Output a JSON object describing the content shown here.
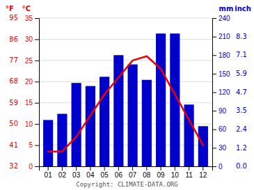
{
  "chart_data": {
    "type": "bar",
    "categories": [
      "01",
      "02",
      "03",
      "04",
      "05",
      "06",
      "07",
      "08",
      "09",
      "10",
      "11",
      "12"
    ],
    "series": [
      {
        "type": "bar",
        "axis": "y2",
        "color": "#0000cc",
        "values": [
          75,
          85,
          135,
          130,
          145,
          180,
          165,
          140,
          215,
          215,
          100,
          65
        ]
      },
      {
        "type": "line",
        "color": "#ee0000",
        "values": [
          3.5,
          3.5,
          7.0,
          12.0,
          17.0,
          21.0,
          25.0,
          26.0,
          23.0,
          17.0,
          11.0,
          5.0
        ]
      }
    ],
    "ylabel": "°C",
    "y2label": "mm",
    "ylim": [
      0,
      35
    ],
    "yticks": [
      0,
      5,
      10,
      15,
      20,
      25,
      30,
      35
    ],
    "y2lim": [
      0,
      240
    ],
    "y2ticks": [
      0,
      30,
      60,
      90,
      120,
      150,
      180,
      210,
      240
    ],
    "grid": true,
    "annotations": [
      {
        "text": "°F",
        "axis": "y"
      },
      {
        "text": "inch",
        "axis": "y2"
      },
      {
        "text": "Copyright: CLIMATE-DATA.ORG"
      },
      {
        "text": "32",
        "y": 0,
        "axis": "y"
      },
      {
        "text": "41",
        "y": 5,
        "axis": "y"
      },
      {
        "text": "50",
        "y": 10,
        "axis": "y"
      },
      {
        "text": "59",
        "y": 15,
        "axis": "y"
      },
      {
        "text": "68",
        "y": 20,
        "axis": "y"
      },
      {
        "text": "77",
        "y": 25,
        "axis": "y"
      },
      {
        "text": "86",
        "y": 30,
        "axis": "y"
      },
      {
        "text": "95",
        "y": 35,
        "axis": "y"
      },
      {
        "text": "0.0",
        "y": 0,
        "axis": "y2"
      },
      {
        "text": "1.2",
        "y": 30,
        "axis": "y2"
      },
      {
        "text": "2.4",
        "y": 60,
        "axis": "y2"
      },
      {
        "text": "3.5",
        "y": 90,
        "axis": "y2"
      },
      {
        "text": "4.7",
        "y": 120,
        "axis": "y2"
      },
      {
        "text": "5.9",
        "y": 150,
        "axis": "y2"
      },
      {
        "text": "7.1",
        "y": 180,
        "axis": "y2"
      },
      {
        "text": "8.3",
        "y": 210,
        "axis": "y2"
      }
    ]
  }
}
